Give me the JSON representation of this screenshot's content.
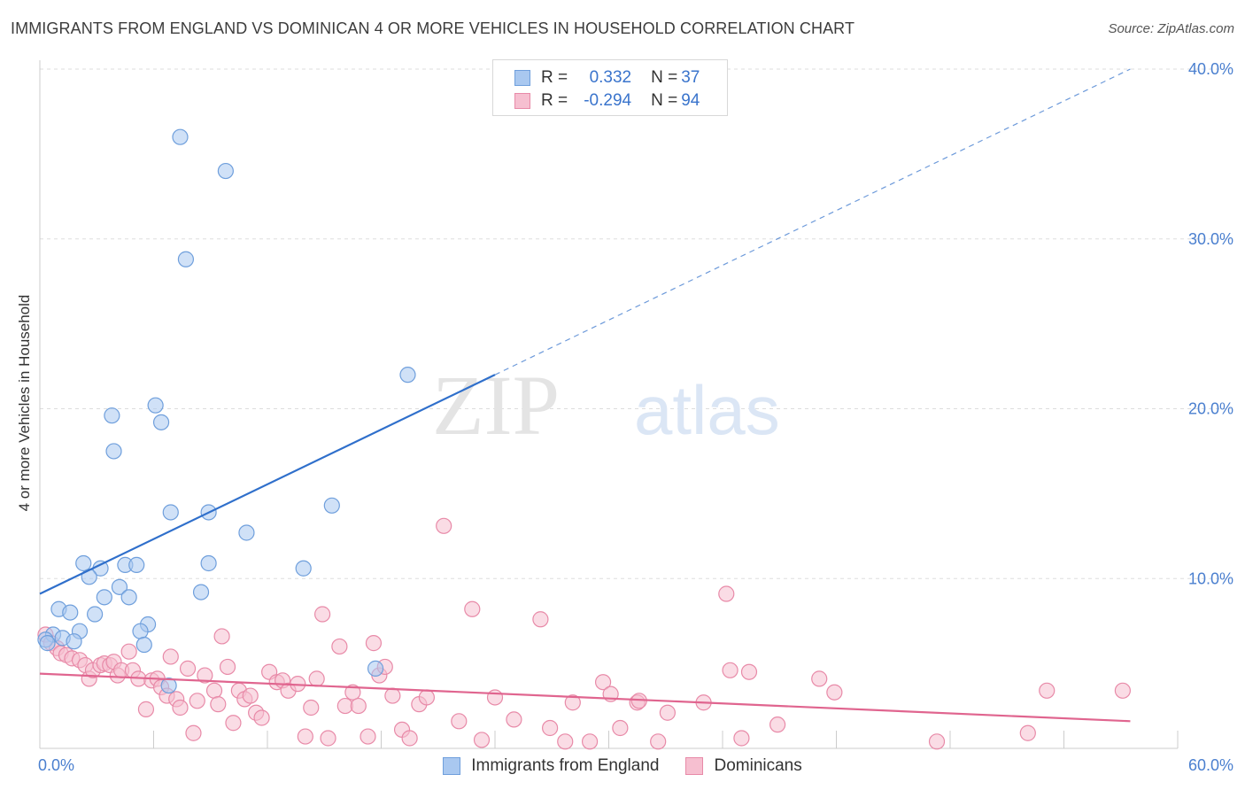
{
  "header": {
    "title": "IMMIGRANTS FROM ENGLAND VS DOMINICAN 4 OR MORE VEHICLES IN HOUSEHOLD CORRELATION CHART",
    "source": "Source: ZipAtlas.com"
  },
  "watermark": {
    "zip": "ZIP",
    "atlas": "atlas"
  },
  "legend": {
    "rows": [
      {
        "r_label": "R =",
        "r_value": "0.332",
        "n_label": "N =",
        "n_value": "37",
        "color": "#a9c8f0",
        "border": "#6f9fdc"
      },
      {
        "r_label": "R =",
        "r_value": "-0.294",
        "n_label": "N =",
        "n_value": "94",
        "color": "#f6bfd0",
        "border": "#e88aa8"
      }
    ]
  },
  "colors": {
    "england_fill": "#a9c8f0",
    "england_stroke": "#6f9fdc",
    "england_line": "#2f6fcb",
    "dominican_fill": "#f6bfd0",
    "dominican_stroke": "#e88aa8",
    "dominican_line": "#e0658f",
    "tick_text": "#4a7fcf",
    "grid": "#dddddd"
  },
  "chart_data": {
    "type": "scatter",
    "title": "IMMIGRANTS FROM ENGLAND VS DOMINICAN 4 OR MORE VEHICLES IN HOUSEHOLD CORRELATION CHART",
    "xlabel": "",
    "ylabel": "4 or more Vehicles in Household",
    "xlim": [
      0,
      60
    ],
    "ylim": [
      0,
      40
    ],
    "x_ticks": [
      "0.0%",
      "60.0%"
    ],
    "y_ticks": [
      {
        "value": 10,
        "label": "10.0%"
      },
      {
        "value": 20,
        "label": "20.0%"
      },
      {
        "value": 30,
        "label": "30.0%"
      },
      {
        "value": 40,
        "label": "40.0%"
      }
    ],
    "grid": true,
    "legend_position": "bottom",
    "series": [
      {
        "name": "Immigrants from England",
        "r": 0.332,
        "n": 37,
        "trend": {
          "x0": 0,
          "y0": 9.1,
          "x1": 24,
          "y1": 22.0,
          "x_dash_end": 57.5,
          "y_dash_end": 40.0
        },
        "points": [
          [
            7.4,
            36.0
          ],
          [
            9.8,
            34.0
          ],
          [
            7.7,
            28.8
          ],
          [
            19.4,
            22.0
          ],
          [
            3.8,
            19.6
          ],
          [
            6.1,
            20.2
          ],
          [
            6.4,
            19.2
          ],
          [
            3.9,
            17.5
          ],
          [
            6.9,
            13.9
          ],
          [
            8.9,
            13.9
          ],
          [
            10.9,
            12.7
          ],
          [
            15.4,
            14.3
          ],
          [
            2.3,
            10.9
          ],
          [
            3.2,
            10.6
          ],
          [
            2.6,
            10.1
          ],
          [
            4.5,
            10.8
          ],
          [
            5.1,
            10.8
          ],
          [
            8.9,
            10.9
          ],
          [
            13.9,
            10.6
          ],
          [
            4.2,
            9.5
          ],
          [
            3.4,
            8.9
          ],
          [
            4.7,
            8.9
          ],
          [
            8.5,
            9.2
          ],
          [
            1.0,
            8.2
          ],
          [
            1.6,
            8.0
          ],
          [
            2.9,
            7.9
          ],
          [
            5.7,
            7.3
          ],
          [
            5.3,
            6.9
          ],
          [
            2.1,
            6.9
          ],
          [
            0.7,
            6.7
          ],
          [
            0.3,
            6.4
          ],
          [
            1.2,
            6.5
          ],
          [
            1.8,
            6.3
          ],
          [
            5.5,
            6.1
          ],
          [
            0.4,
            6.2
          ],
          [
            17.7,
            4.7
          ],
          [
            6.8,
            3.7
          ]
        ]
      },
      {
        "name": "Dominicans",
        "r": -0.294,
        "n": 94,
        "trend": {
          "x0": 0,
          "y0": 4.4,
          "x1": 57.5,
          "y1": 1.6
        },
        "points": [
          [
            0.3,
            6.7
          ],
          [
            0.6,
            6.2
          ],
          [
            0.9,
            5.9
          ],
          [
            1.1,
            5.6
          ],
          [
            1.4,
            5.5
          ],
          [
            1.7,
            5.3
          ],
          [
            2.1,
            5.2
          ],
          [
            2.4,
            4.9
          ],
          [
            2.6,
            4.1
          ],
          [
            2.8,
            4.6
          ],
          [
            3.2,
            4.9
          ],
          [
            3.4,
            5.0
          ],
          [
            3.7,
            4.9
          ],
          [
            3.9,
            5.1
          ],
          [
            4.1,
            4.3
          ],
          [
            4.3,
            4.6
          ],
          [
            4.7,
            5.7
          ],
          [
            4.9,
            4.6
          ],
          [
            5.2,
            4.1
          ],
          [
            5.6,
            2.3
          ],
          [
            5.9,
            4.0
          ],
          [
            6.2,
            4.1
          ],
          [
            6.4,
            3.6
          ],
          [
            6.7,
            3.1
          ],
          [
            6.9,
            5.4
          ],
          [
            7.2,
            2.9
          ],
          [
            7.4,
            2.4
          ],
          [
            7.8,
            4.7
          ],
          [
            8.1,
            0.9
          ],
          [
            8.3,
            2.8
          ],
          [
            8.7,
            4.3
          ],
          [
            9.2,
            3.4
          ],
          [
            9.4,
            2.6
          ],
          [
            9.6,
            6.6
          ],
          [
            9.9,
            4.8
          ],
          [
            10.2,
            1.5
          ],
          [
            10.5,
            3.4
          ],
          [
            10.8,
            2.9
          ],
          [
            11.1,
            3.1
          ],
          [
            11.4,
            2.1
          ],
          [
            11.7,
            1.8
          ],
          [
            12.1,
            4.5
          ],
          [
            12.5,
            3.9
          ],
          [
            12.8,
            4.0
          ],
          [
            13.1,
            3.4
          ],
          [
            13.6,
            3.8
          ],
          [
            14.0,
            0.7
          ],
          [
            14.3,
            2.4
          ],
          [
            14.6,
            4.1
          ],
          [
            14.9,
            7.9
          ],
          [
            15.2,
            0.6
          ],
          [
            15.8,
            6.0
          ],
          [
            16.1,
            2.5
          ],
          [
            16.5,
            3.3
          ],
          [
            16.8,
            2.5
          ],
          [
            17.3,
            0.7
          ],
          [
            17.6,
            6.2
          ],
          [
            17.9,
            4.3
          ],
          [
            18.2,
            4.8
          ],
          [
            18.6,
            3.1
          ],
          [
            19.1,
            1.1
          ],
          [
            19.5,
            0.6
          ],
          [
            20.0,
            2.6
          ],
          [
            20.4,
            3.0
          ],
          [
            21.3,
            13.1
          ],
          [
            22.1,
            1.6
          ],
          [
            22.8,
            8.2
          ],
          [
            23.3,
            0.5
          ],
          [
            24.0,
            3.0
          ],
          [
            25.0,
            1.7
          ],
          [
            26.4,
            7.6
          ],
          [
            26.9,
            1.2
          ],
          [
            27.7,
            0.4
          ],
          [
            28.1,
            2.7
          ],
          [
            29.0,
            0.4
          ],
          [
            29.7,
            3.9
          ],
          [
            30.1,
            3.2
          ],
          [
            30.6,
            1.2
          ],
          [
            31.5,
            2.7
          ],
          [
            32.6,
            0.4
          ],
          [
            33.1,
            2.1
          ],
          [
            35.0,
            2.7
          ],
          [
            36.2,
            9.1
          ],
          [
            36.4,
            4.6
          ],
          [
            37.0,
            0.6
          ],
          [
            37.4,
            4.5
          ],
          [
            38.9,
            1.4
          ],
          [
            41.1,
            4.1
          ],
          [
            41.9,
            3.3
          ],
          [
            47.3,
            0.4
          ],
          [
            52.1,
            0.9
          ],
          [
            53.1,
            3.4
          ],
          [
            57.1,
            3.4
          ],
          [
            31.6,
            2.8
          ]
        ]
      }
    ]
  }
}
